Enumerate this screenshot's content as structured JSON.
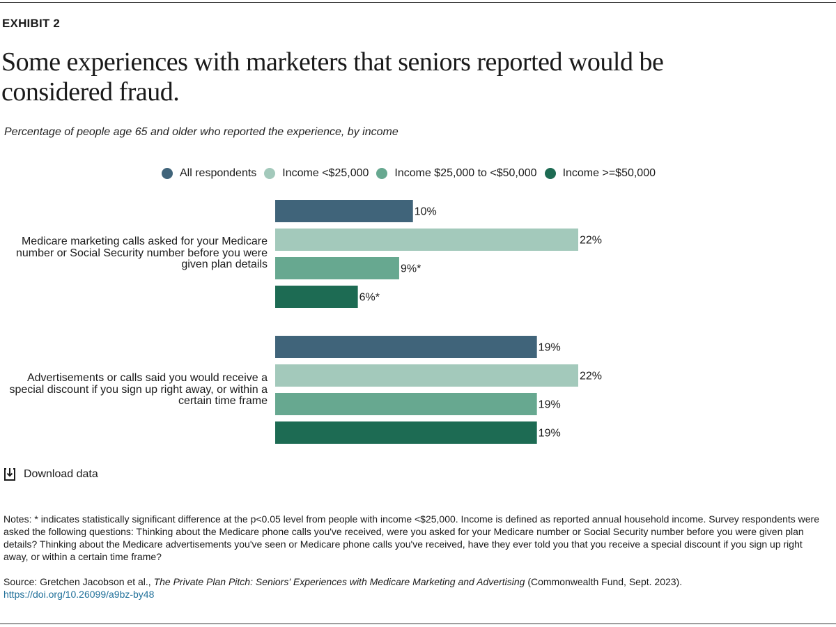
{
  "exhibit_label": "EXHIBIT 2",
  "title": "Some experiences with marketers that seniors reported would be considered fraud.",
  "subtitle": "Percentage of people age 65 and older who reported the experience, by income",
  "colors": {
    "all": "#40647a",
    "low": "#a3c9bb",
    "mid": "#67a890",
    "high": "#1d6b53"
  },
  "chart_data": {
    "type": "bar",
    "orientation": "horizontal",
    "title": "Some experiences with marketers that seniors reported would be considered fraud.",
    "xlabel": "",
    "ylabel": "",
    "xlim": [
      0,
      22
    ],
    "grid": false,
    "legend_position": "top",
    "categories": [
      "Medicare marketing calls asked for your Medicare number or Social Security number before you were given plan details",
      "Advertisements or calls said you would receive a special discount if you sign up right away, or within a certain time frame"
    ],
    "series": [
      {
        "name": "All respondents",
        "key": "all",
        "values": [
          10,
          19
        ],
        "labels": [
          "10%",
          "19%"
        ]
      },
      {
        "name": "Income <$25,000",
        "key": "low",
        "values": [
          22,
          22
        ],
        "labels": [
          "22%",
          "22%"
        ]
      },
      {
        "name": "Income $25,000 to <$50,000",
        "key": "mid",
        "values": [
          9,
          19
        ],
        "labels": [
          "9%*",
          "19%"
        ]
      },
      {
        "name": "Income >=$50,000",
        "key": "high",
        "values": [
          6,
          19
        ],
        "labels": [
          "6%*",
          "19%"
        ]
      }
    ]
  },
  "download_label": "Download data",
  "notes": "Notes: * indicates statistically significant difference at the p<0.05 level from people with income <$25,000. Income is defined as reported annual household income. Survey respondents were asked the following questions: Thinking about the Medicare phone calls you've received, were you asked for your Medicare number or Social Security number before you were given plan details? Thinking about the Medicare advertisements you've seen or Medicare phone calls you've received, have they ever told you that you receive a special discount if you sign up right away, or within a certain time frame?",
  "source": {
    "prefix": "Source: Gretchen Jacobson et al., ",
    "publication": "The Private Plan Pitch: Seniors' Experiences with Medicare Marketing and Advertising",
    "suffix": " (Commonwealth Fund, Sept. 2023).",
    "doi": "https://doi.org/10.26099/a9bz-by48"
  }
}
